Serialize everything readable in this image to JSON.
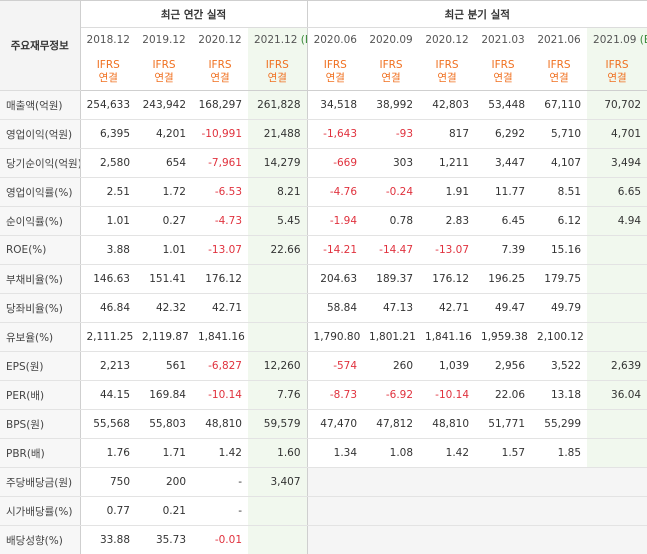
{
  "header": {
    "item_label": "주요재무정보",
    "annual_title": "최근 연간 실적",
    "quarterly_title": "최근 분기 실적",
    "estimate_mark": "(E)",
    "annual_periods": [
      "2018.12",
      "2019.12",
      "2020.12",
      "2021.12"
    ],
    "quarterly_periods": [
      "2020.06",
      "2020.09",
      "2020.12",
      "2021.03",
      "2021.06",
      "2021.09"
    ],
    "ifrs_top": "IFRS",
    "ifrs_bottom": "연결"
  },
  "colors": {
    "negative": "#e0323e",
    "ifrs": "#f07020",
    "estimate_bg": "#f1f8ee",
    "estimate_mark": "#3a8a3a"
  },
  "rows": [
    {
      "label": "매출액(억원)",
      "values": [
        "254,633",
        "243,942",
        "168,297",
        "261,828",
        "34,518",
        "38,992",
        "42,803",
        "53,448",
        "67,110",
        "70,702"
      ]
    },
    {
      "label": "영업이익(억원)",
      "values": [
        "6,395",
        "4,201",
        "-10,991",
        "21,488",
        "-1,643",
        "-93",
        "817",
        "6,292",
        "5,710",
        "4,701"
      ]
    },
    {
      "label": "당기순이익(억원)",
      "values": [
        "2,580",
        "654",
        "-7,961",
        "14,279",
        "-669",
        "303",
        "1,211",
        "3,447",
        "4,107",
        "3,494"
      ]
    },
    {
      "label": "영업이익률(%)",
      "values": [
        "2.51",
        "1.72",
        "-6.53",
        "8.21",
        "-4.76",
        "-0.24",
        "1.91",
        "11.77",
        "8.51",
        "6.65"
      ]
    },
    {
      "label": "순이익률(%)",
      "values": [
        "1.01",
        "0.27",
        "-4.73",
        "5.45",
        "-1.94",
        "0.78",
        "2.83",
        "6.45",
        "6.12",
        "4.94"
      ]
    },
    {
      "label": "ROE(%)",
      "values": [
        "3.88",
        "1.01",
        "-13.07",
        "22.66",
        "-14.21",
        "-14.47",
        "-13.07",
        "7.39",
        "15.16",
        ""
      ]
    },
    {
      "label": "부채비율(%)",
      "values": [
        "146.63",
        "151.41",
        "176.12",
        "",
        "204.63",
        "189.37",
        "176.12",
        "196.25",
        "179.75",
        ""
      ]
    },
    {
      "label": "당좌비율(%)",
      "values": [
        "46.84",
        "42.32",
        "42.71",
        "",
        "58.84",
        "47.13",
        "42.71",
        "49.47",
        "49.79",
        ""
      ]
    },
    {
      "label": "유보율(%)",
      "values": [
        "2,111.25",
        "2,119.87",
        "1,841.16",
        "",
        "1,790.80",
        "1,801.21",
        "1,841.16",
        "1,959.38",
        "2,100.12",
        ""
      ]
    },
    {
      "label": "EPS(원)",
      "values": [
        "2,213",
        "561",
        "-6,827",
        "12,260",
        "-574",
        "260",
        "1,039",
        "2,956",
        "3,522",
        "2,639"
      ]
    },
    {
      "label": "PER(배)",
      "values": [
        "44.15",
        "169.84",
        "-10.14",
        "7.76",
        "-8.73",
        "-6.92",
        "-10.14",
        "22.06",
        "13.18",
        "36.04"
      ]
    },
    {
      "label": "BPS(원)",
      "values": [
        "55,568",
        "55,803",
        "48,810",
        "59,579",
        "47,470",
        "47,812",
        "48,810",
        "51,771",
        "55,299",
        ""
      ]
    },
    {
      "label": "PBR(배)",
      "values": [
        "1.76",
        "1.71",
        "1.42",
        "1.60",
        "1.34",
        "1.08",
        "1.42",
        "1.57",
        "1.85",
        ""
      ]
    },
    {
      "label": "주당배당금(원)",
      "values": [
        "750",
        "200",
        "-",
        "3,407",
        null,
        null,
        null,
        null,
        null,
        null
      ]
    },
    {
      "label": "시가배당률(%)",
      "values": [
        "0.77",
        "0.21",
        "-",
        "",
        null,
        null,
        null,
        null,
        null,
        null
      ]
    },
    {
      "label": "배당성향(%)",
      "values": [
        "33.88",
        "35.73",
        "-0.01",
        "",
        null,
        null,
        null,
        null,
        null,
        null
      ]
    }
  ]
}
